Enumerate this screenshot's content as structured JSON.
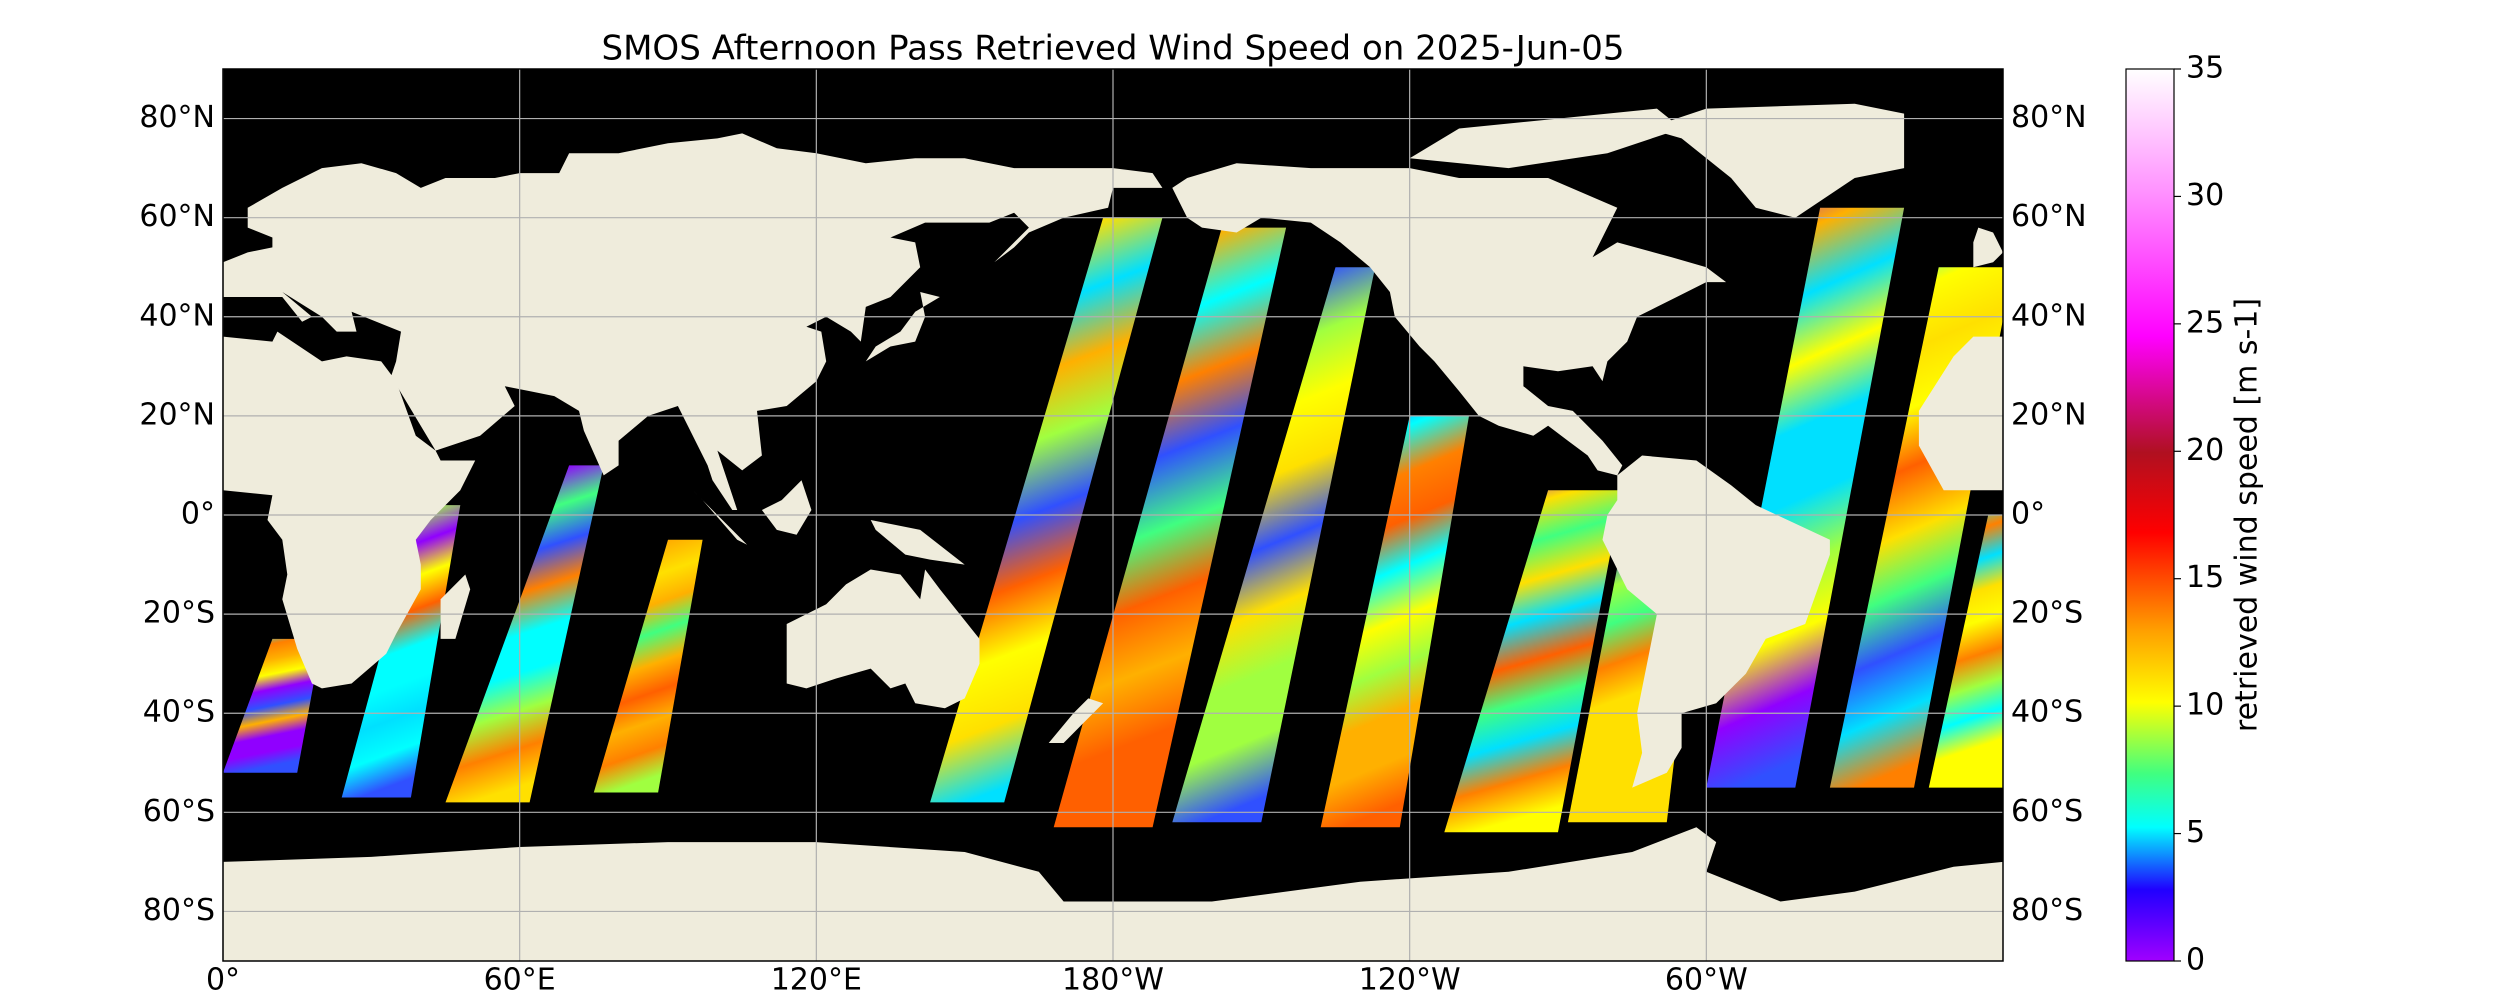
{
  "map": {
    "title": "SMOS Afternoon Pass Retrieved Wind Speed on 2025-Jun-05",
    "lon_range": [
      0,
      360
    ],
    "lat_range": [
      -90,
      90
    ],
    "lon_ticks": [
      {
        "value": 0,
        "label": "0°"
      },
      {
        "value": 60,
        "label": "60°E"
      },
      {
        "value": 120,
        "label": "120°E"
      },
      {
        "value": 180,
        "label": "180°W"
      },
      {
        "value": 240,
        "label": "120°W"
      },
      {
        "value": 300,
        "label": "60°W"
      }
    ],
    "lat_ticks": [
      {
        "value": 80,
        "label": "80°N"
      },
      {
        "value": 60,
        "label": "60°N"
      },
      {
        "value": 40,
        "label": "40°N"
      },
      {
        "value": 20,
        "label": "20°N"
      },
      {
        "value": 0,
        "label": "0°"
      },
      {
        "value": -20,
        "label": "20°S"
      },
      {
        "value": -40,
        "label": "40°S"
      },
      {
        "value": -60,
        "label": "60°S"
      },
      {
        "value": -80,
        "label": "80°S"
      }
    ],
    "colorbar": {
      "label": "retrieved wind speed [m s-1]",
      "range": [
        0,
        35
      ],
      "ticks": [
        0,
        5,
        10,
        15,
        20,
        25,
        30,
        35
      ]
    }
  }
}
